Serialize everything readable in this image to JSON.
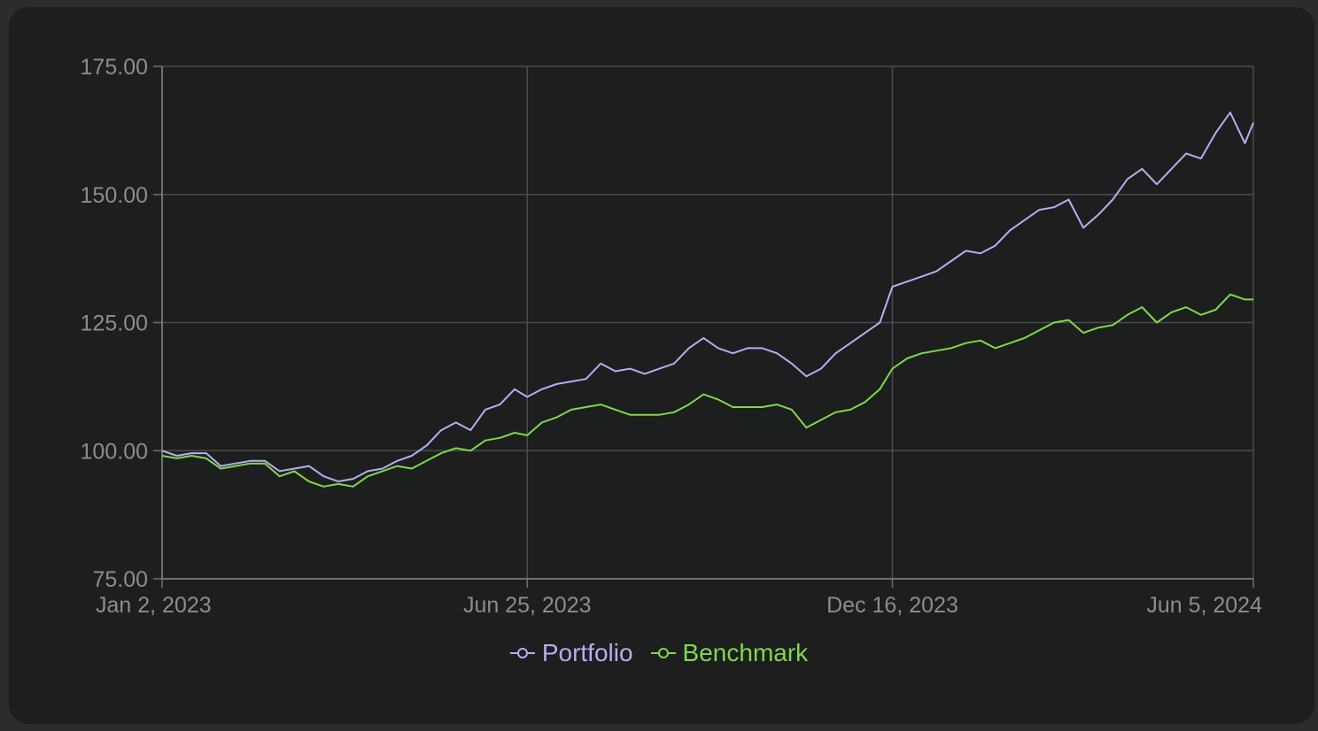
{
  "chart_data": {
    "type": "line",
    "x_type": "date",
    "xlim": [
      "2023-01-02",
      "2024-06-05"
    ],
    "ylim": [
      75,
      175
    ],
    "y_ticks": [
      75,
      100,
      125,
      150,
      175
    ],
    "y_tick_labels": [
      "75.00",
      "100.00",
      "125.00",
      "150.00",
      "175.00"
    ],
    "x_ticks": [
      "2023-01-02",
      "2023-06-25",
      "2023-12-16",
      "2024-06-05"
    ],
    "x_tick_labels": [
      "Jan 2, 2023",
      "Jun 25, 2023",
      "Dec 16, 2023",
      "Jun 5, 2024"
    ],
    "grid": true,
    "legend": "bottom-center",
    "title": "",
    "xlabel": "",
    "ylabel": "",
    "series": [
      {
        "name": "Portfolio",
        "color": "#b6adf2",
        "points": [
          [
            "2023-01-02",
            100
          ],
          [
            "2023-01-09",
            99
          ],
          [
            "2023-01-16",
            99.5
          ],
          [
            "2023-01-23",
            99.5
          ],
          [
            "2023-01-30",
            97
          ],
          [
            "2023-02-06",
            97.5
          ],
          [
            "2023-02-13",
            98
          ],
          [
            "2023-02-20",
            98
          ],
          [
            "2023-02-27",
            96
          ],
          [
            "2023-03-06",
            96.5
          ],
          [
            "2023-03-13",
            97
          ],
          [
            "2023-03-20",
            95
          ],
          [
            "2023-03-27",
            94
          ],
          [
            "2023-04-03",
            94.5
          ],
          [
            "2023-04-10",
            96
          ],
          [
            "2023-04-17",
            96.5
          ],
          [
            "2023-04-24",
            98
          ],
          [
            "2023-05-01",
            99
          ],
          [
            "2023-05-08",
            101
          ],
          [
            "2023-05-15",
            104
          ],
          [
            "2023-05-22",
            105.5
          ],
          [
            "2023-05-29",
            104
          ],
          [
            "2023-06-05",
            108
          ],
          [
            "2023-06-12",
            109
          ],
          [
            "2023-06-19",
            112
          ],
          [
            "2023-06-25",
            110.5
          ],
          [
            "2023-07-02",
            112
          ],
          [
            "2023-07-09",
            113
          ],
          [
            "2023-07-16",
            113.5
          ],
          [
            "2023-07-23",
            114
          ],
          [
            "2023-07-30",
            117
          ],
          [
            "2023-08-06",
            115.5
          ],
          [
            "2023-08-13",
            116
          ],
          [
            "2023-08-20",
            115
          ],
          [
            "2023-08-27",
            116
          ],
          [
            "2023-09-03",
            117
          ],
          [
            "2023-09-10",
            120
          ],
          [
            "2023-09-17",
            122
          ],
          [
            "2023-09-24",
            120
          ],
          [
            "2023-10-01",
            119
          ],
          [
            "2023-10-08",
            120
          ],
          [
            "2023-10-15",
            120
          ],
          [
            "2023-10-22",
            119
          ],
          [
            "2023-10-29",
            117
          ],
          [
            "2023-11-05",
            114.5
          ],
          [
            "2023-11-12",
            116
          ],
          [
            "2023-11-19",
            119
          ],
          [
            "2023-11-26",
            121
          ],
          [
            "2023-12-03",
            123
          ],
          [
            "2023-12-10",
            125
          ],
          [
            "2023-12-16",
            132
          ],
          [
            "2023-12-23",
            133
          ],
          [
            "2023-12-30",
            134
          ],
          [
            "2024-01-06",
            135
          ],
          [
            "2024-01-13",
            137
          ],
          [
            "2024-01-20",
            139
          ],
          [
            "2024-01-27",
            138.5
          ],
          [
            "2024-02-03",
            140
          ],
          [
            "2024-02-10",
            143
          ],
          [
            "2024-02-17",
            145
          ],
          [
            "2024-02-24",
            147
          ],
          [
            "2024-03-02",
            147.5
          ],
          [
            "2024-03-09",
            149
          ],
          [
            "2024-03-16",
            143.5
          ],
          [
            "2024-03-23",
            146
          ],
          [
            "2024-03-30",
            149
          ],
          [
            "2024-04-06",
            153
          ],
          [
            "2024-04-13",
            155
          ],
          [
            "2024-04-20",
            152
          ],
          [
            "2024-04-27",
            155
          ],
          [
            "2024-05-04",
            158
          ],
          [
            "2024-05-11",
            157
          ],
          [
            "2024-05-18",
            162
          ],
          [
            "2024-05-25",
            166
          ],
          [
            "2024-06-01",
            160
          ],
          [
            "2024-06-05",
            164
          ]
        ]
      },
      {
        "name": "Benchmark",
        "color": "#7fd94a",
        "points": [
          [
            "2023-01-02",
            99
          ],
          [
            "2023-01-09",
            98.5
          ],
          [
            "2023-01-16",
            99
          ],
          [
            "2023-01-23",
            98.5
          ],
          [
            "2023-01-30",
            96.5
          ],
          [
            "2023-02-06",
            97
          ],
          [
            "2023-02-13",
            97.5
          ],
          [
            "2023-02-20",
            97.5
          ],
          [
            "2023-02-27",
            95
          ],
          [
            "2023-03-06",
            96
          ],
          [
            "2023-03-13",
            94
          ],
          [
            "2023-03-20",
            93
          ],
          [
            "2023-03-27",
            93.5
          ],
          [
            "2023-04-03",
            93
          ],
          [
            "2023-04-10",
            95
          ],
          [
            "2023-04-17",
            96
          ],
          [
            "2023-04-24",
            97
          ],
          [
            "2023-05-01",
            96.5
          ],
          [
            "2023-05-08",
            98
          ],
          [
            "2023-05-15",
            99.5
          ],
          [
            "2023-05-22",
            100.5
          ],
          [
            "2023-05-29",
            100
          ],
          [
            "2023-06-05",
            102
          ],
          [
            "2023-06-12",
            102.5
          ],
          [
            "2023-06-19",
            103.5
          ],
          [
            "2023-06-25",
            103
          ],
          [
            "2023-07-02",
            105.5
          ],
          [
            "2023-07-09",
            106.5
          ],
          [
            "2023-07-16",
            108
          ],
          [
            "2023-07-23",
            108.5
          ],
          [
            "2023-07-30",
            109
          ],
          [
            "2023-08-06",
            108
          ],
          [
            "2023-08-13",
            107
          ],
          [
            "2023-08-20",
            107
          ],
          [
            "2023-08-27",
            107
          ],
          [
            "2023-09-03",
            107.5
          ],
          [
            "2023-09-10",
            109
          ],
          [
            "2023-09-17",
            111
          ],
          [
            "2023-09-24",
            110
          ],
          [
            "2023-10-01",
            108.5
          ],
          [
            "2023-10-08",
            108.5
          ],
          [
            "2023-10-15",
            108.5
          ],
          [
            "2023-10-22",
            109
          ],
          [
            "2023-10-29",
            108
          ],
          [
            "2023-11-05",
            104.5
          ],
          [
            "2023-11-12",
            106
          ],
          [
            "2023-11-19",
            107.5
          ],
          [
            "2023-11-26",
            108
          ],
          [
            "2023-12-03",
            109.5
          ],
          [
            "2023-12-10",
            112
          ],
          [
            "2023-12-16",
            116
          ],
          [
            "2023-12-23",
            118
          ],
          [
            "2023-12-30",
            119
          ],
          [
            "2024-01-06",
            119.5
          ],
          [
            "2024-01-13",
            120
          ],
          [
            "2024-01-20",
            121
          ],
          [
            "2024-01-27",
            121.5
          ],
          [
            "2024-02-03",
            120
          ],
          [
            "2024-02-10",
            121
          ],
          [
            "2024-02-17",
            122
          ],
          [
            "2024-02-24",
            123.5
          ],
          [
            "2024-03-02",
            125
          ],
          [
            "2024-03-09",
            125.5
          ],
          [
            "2024-03-16",
            123
          ],
          [
            "2024-03-23",
            124
          ],
          [
            "2024-03-30",
            124.5
          ],
          [
            "2024-04-06",
            126.5
          ],
          [
            "2024-04-13",
            128
          ],
          [
            "2024-04-20",
            125
          ],
          [
            "2024-04-27",
            127
          ],
          [
            "2024-05-04",
            128
          ],
          [
            "2024-05-11",
            126.5
          ],
          [
            "2024-05-18",
            127.5
          ],
          [
            "2024-05-25",
            130.5
          ],
          [
            "2024-06-01",
            129.5
          ],
          [
            "2024-06-05",
            129.5
          ]
        ]
      }
    ]
  },
  "style": {
    "page_background": "#2b2c2d",
    "card_background": "#1d1e1e",
    "grid_color": "#4a4b4c",
    "axis_color": "#6e7071",
    "tick_label_color": "#8b8d8e"
  }
}
